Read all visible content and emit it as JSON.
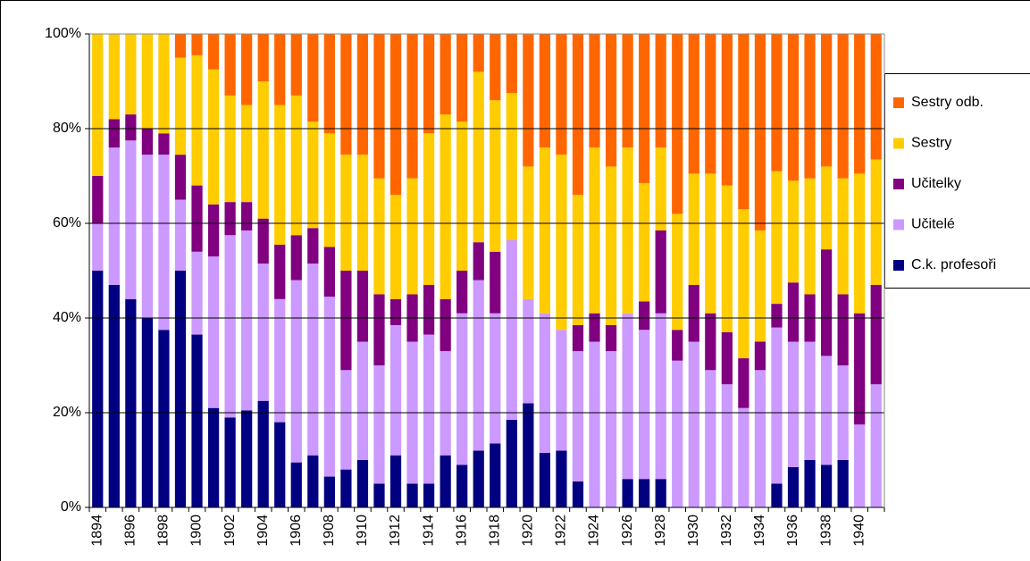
{
  "chart_data": {
    "type": "stacked_bar",
    "categories": [
      "1894",
      null,
      "1896",
      null,
      "1898",
      null,
      "1900",
      null,
      "1902",
      null,
      "1904",
      null,
      "1906",
      null,
      "1908",
      null,
      "1910",
      null,
      "1912",
      null,
      "1914",
      null,
      "1916",
      null,
      "1918",
      null,
      "1920",
      null,
      "1922",
      null,
      "1924",
      null,
      "1926",
      null,
      "1928",
      null,
      "1930",
      null,
      "1932",
      null,
      "1934",
      null,
      "1936",
      null,
      "1938",
      null,
      "1940",
      null
    ],
    "series": [
      {
        "name": "C.k. profesoři",
        "color": "#000080",
        "values": [
          50,
          47,
          44,
          40,
          37.5,
          50,
          36.5,
          21,
          19,
          20.5,
          22.5,
          18,
          9.5,
          11,
          6.5,
          8,
          10,
          5,
          11,
          5,
          5,
          11,
          9,
          12,
          13.5,
          18.5,
          22,
          11.5,
          12,
          5.5,
          0,
          0,
          6,
          6,
          6,
          0,
          0,
          0,
          0,
          0,
          0,
          5,
          8.5,
          10,
          9,
          10,
          0,
          0
        ]
      },
      {
        "name": "Učitelé",
        "color": "#cc99ff",
        "values": [
          10,
          29,
          33.5,
          34.5,
          37,
          15,
          17.5,
          32,
          38.5,
          38,
          29,
          26,
          38.5,
          40.5,
          38,
          21,
          25,
          25,
          27.5,
          30,
          31.5,
          22,
          32,
          36,
          27.5,
          38,
          22,
          29.5,
          25.5,
          27.5,
          35,
          33,
          35,
          31.5,
          35,
          31,
          35,
          29,
          26,
          21,
          29,
          33,
          26.5,
          25,
          23,
          20,
          17.5,
          26
        ]
      },
      {
        "name": "Učitelky",
        "color": "#800080",
        "values": [
          10,
          6,
          5.5,
          5.5,
          4.5,
          9.5,
          14,
          11,
          7,
          6,
          9.5,
          11.5,
          9.5,
          7.5,
          10.5,
          21,
          15,
          15,
          5.5,
          10,
          10.5,
          11,
          9,
          8,
          13,
          0,
          0,
          0,
          0,
          5.5,
          6,
          5.5,
          0,
          6,
          17.5,
          6.5,
          12,
          12,
          11,
          10.5,
          6,
          5,
          12.5,
          10,
          22.5,
          15,
          23.5,
          21
        ]
      },
      {
        "name": "Sestry",
        "color": "#ffcc00",
        "values": [
          30,
          18,
          17,
          20,
          21,
          20.5,
          27.5,
          28.5,
          22.5,
          20.5,
          29,
          29.5,
          29.5,
          22.5,
          24,
          24.5,
          24.5,
          24.5,
          22,
          24.5,
          32,
          39,
          31.5,
          36,
          32,
          31,
          28,
          35,
          37,
          27.5,
          35,
          33.5,
          35,
          25,
          17.5,
          24.5,
          23.5,
          29.5,
          31,
          31.5,
          23.5,
          28,
          21.5,
          24.5,
          17.5,
          24.5,
          29.5,
          26.5
        ]
      },
      {
        "name": "Sestry odb.",
        "color": "#ff6600",
        "values": [
          0,
          0,
          0,
          0,
          0,
          5,
          4.5,
          7.5,
          13,
          15,
          10,
          15,
          13,
          18.5,
          21,
          25.5,
          25.5,
          30.5,
          34,
          30.5,
          21,
          17,
          18.5,
          8,
          14,
          12.5,
          28,
          24,
          25.5,
          34,
          24,
          28,
          24,
          31.5,
          24,
          38,
          29.5,
          29.5,
          32,
          37,
          41.5,
          29,
          31,
          30.5,
          28,
          30.5,
          29.5,
          26.5
        ]
      }
    ],
    "ylim": [
      0,
      100
    ],
    "yticks": [
      {
        "value": 0,
        "label": "0%"
      },
      {
        "value": 20,
        "label": "20%"
      },
      {
        "value": 40,
        "label": "40%"
      },
      {
        "value": 60,
        "label": "60%"
      },
      {
        "value": 80,
        "label": "80%"
      },
      {
        "value": 100,
        "label": "100%"
      }
    ],
    "grid": true,
    "legend": "right"
  }
}
